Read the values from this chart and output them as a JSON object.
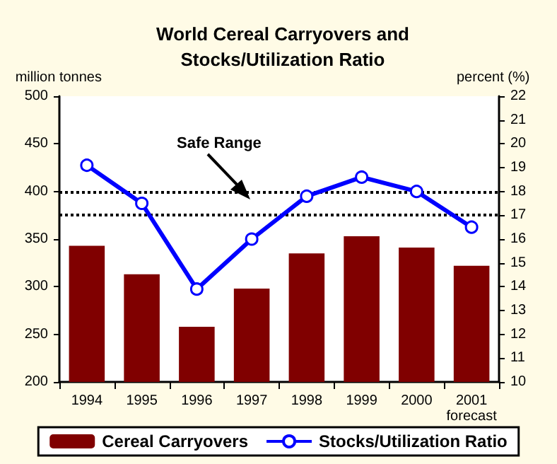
{
  "chart_data": {
    "type": "bar",
    "title": "World Cereal Carryovers and\nStocks/Utilization Ratio",
    "ylabel": "million tonnes",
    "y2label": "percent (%)",
    "categories": [
      "1994",
      "1995",
      "1996",
      "1997",
      "1998",
      "1999",
      "2000",
      "2001\nforecast"
    ],
    "series": [
      {
        "name": "Cereal Carryovers",
        "color": "#800000",
        "values": [
          343,
          313,
          258,
          298,
          335,
          353,
          341,
          322
        ]
      },
      {
        "name": "Stocks/Utilization Ratio",
        "type": "line",
        "axis": "y2",
        "color": "#0000ff",
        "marker": "circle",
        "values": [
          19.1,
          17.5,
          13.9,
          16.0,
          17.8,
          18.6,
          18.0,
          16.5
        ]
      }
    ],
    "ylim": [
      200,
      500
    ],
    "yticks": [
      200,
      250,
      300,
      350,
      400,
      450,
      500
    ],
    "y2lim": [
      10,
      22
    ],
    "y2ticks": [
      10,
      11,
      12,
      13,
      14,
      15,
      16,
      17,
      18,
      19,
      20,
      21,
      22
    ],
    "ref_lines": [
      {
        "axis": "y2",
        "value": 18,
        "color": "#000000",
        "line_style": "dotted"
      },
      {
        "axis": "y2",
        "value": 17,
        "color": "#000000",
        "line_style": "dotted"
      }
    ],
    "annotations": [
      "Safe Range"
    ],
    "grid": false,
    "legend": "bottom"
  }
}
